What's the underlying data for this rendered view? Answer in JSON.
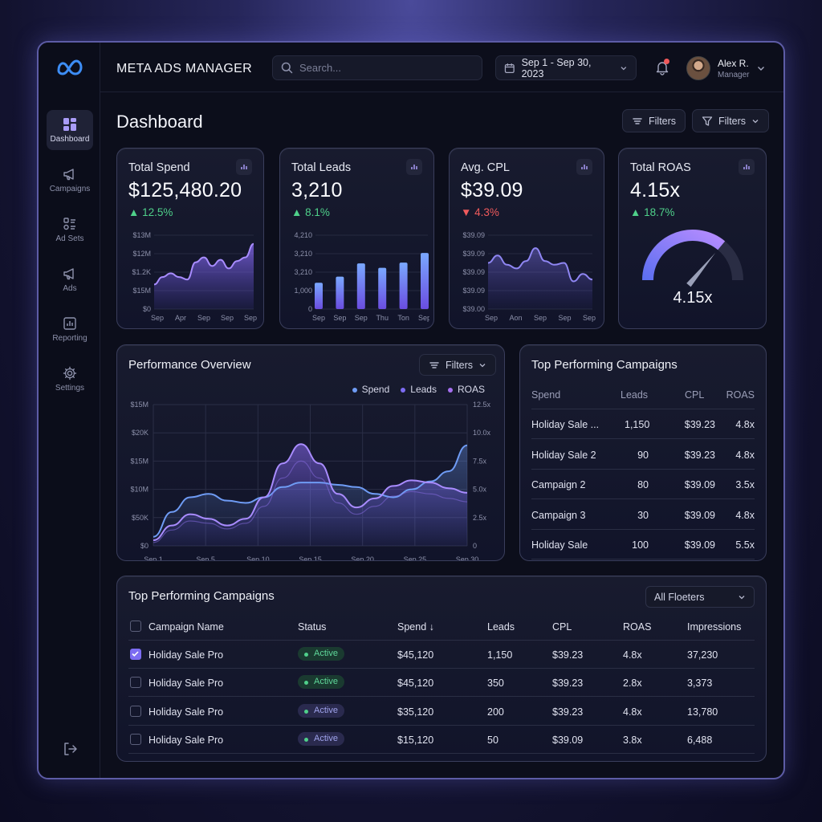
{
  "app": {
    "title": "META ADS MANAGER"
  },
  "search": {
    "placeholder": "Search..."
  },
  "date_range": "Sep 1 - Sep 30, 2023",
  "user": {
    "name": "Alex R.",
    "role": "Manager"
  },
  "sidebar": {
    "items": [
      {
        "label": "Dashboard",
        "icon": "dashboard-icon",
        "active": true
      },
      {
        "label": "Campaigns",
        "icon": "megaphone-icon"
      },
      {
        "label": "Ad Sets",
        "icon": "adsets-icon"
      },
      {
        "label": "Ads",
        "icon": "megaphone-icon"
      },
      {
        "label": "Reporting",
        "icon": "chart-icon"
      },
      {
        "label": "Settings",
        "icon": "gear-icon"
      }
    ]
  },
  "page": {
    "title": "Dashboard",
    "filter_btn_1": "Filters",
    "filter_btn_2": "Filters"
  },
  "kpis": [
    {
      "title": "Total Spend",
      "value": "$125,480.20",
      "delta": "12.5%",
      "direction": "up"
    },
    {
      "title": "Total Leads",
      "value": "3,210",
      "delta": "8.1%",
      "direction": "up"
    },
    {
      "title": "Avg. CPL",
      "value": "$39.09",
      "delta": "4.3%",
      "direction": "down"
    },
    {
      "title": "Total ROAS",
      "value": "4.15x",
      "delta": "18.7%",
      "direction": "up",
      "gauge_label": "4.15x"
    }
  ],
  "colors": {
    "accent": "#7c6cf2",
    "spend": "#6f9cf5",
    "leads": "#7c6cf2",
    "roas": "#a56ff0",
    "up": "#4fd08a",
    "down": "#f05a5c"
  },
  "chart_data": [
    {
      "type": "area",
      "title": "Total Spend",
      "y_tick_labels": [
        "$13M",
        "$12M",
        "$1.2K",
        "$15M",
        "$0"
      ],
      "x_tick_labels": [
        "Sep",
        "Apr",
        "Sep",
        "Sep",
        "Sep"
      ],
      "values": [
        2.0,
        2.6,
        2.9,
        2.6,
        2.4,
        3.8,
        4.2,
        3.5,
        4.0,
        3.3,
        3.9,
        4.2,
        5.3
      ],
      "ylim": [
        0,
        6
      ]
    },
    {
      "type": "bar",
      "title": "Total Leads",
      "categories": [
        "Sep",
        "Sep",
        "Sep",
        "Thu",
        "Ton",
        "Sep"
      ],
      "values": [
        1500,
        1850,
        2600,
        2350,
        2650,
        3200
      ],
      "y_tick_labels": [
        "4,210",
        "3,210",
        "3,210",
        "1,000",
        "0"
      ],
      "ylim": [
        0,
        4210
      ]
    },
    {
      "type": "line",
      "title": "Avg. CPL",
      "y_tick_labels": [
        "$39.09",
        "$39.09",
        "$39.09",
        "$39.09",
        "$39.00"
      ],
      "x_tick_labels": [
        "Sep",
        "Aon",
        "Sep",
        "Sep",
        "Sep"
      ],
      "values": [
        2.5,
        2.9,
        2.4,
        2.2,
        2.6,
        3.3,
        2.6,
        2.4,
        2.5,
        1.5,
        1.9,
        1.6
      ],
      "ylim": [
        0,
        4
      ]
    },
    {
      "type": "gauge",
      "title": "Total ROAS",
      "value": 4.15,
      "fill_fraction": 0.72
    },
    {
      "type": "area",
      "title": "Performance Overview",
      "x_tick_labels": [
        "Sep 1",
        "Sep 5",
        "Sep 10",
        "Sep 15",
        "Sep 20",
        "Sep 25",
        "Sep 30"
      ],
      "y_left_tick_labels": [
        "$15M",
        "$20K",
        "$15M",
        "$10M",
        "$50K",
        "$0"
      ],
      "y_right_tick_labels": [
        "12.5x",
        "10.0x",
        "7.5x",
        "5.0x",
        "2.5x",
        "0"
      ],
      "series": [
        {
          "name": "Spend",
          "values": [
            0.8,
            3.0,
            4.3,
            4.6,
            4.0,
            3.8,
            4.3,
            5.2,
            5.6,
            5.6,
            5.4,
            5.2,
            4.6,
            4.3,
            5.0,
            5.7,
            6.6,
            8.9
          ]
        },
        {
          "name": "Leads",
          "values": [
            0.5,
            1.8,
            2.8,
            2.4,
            1.8,
            2.4,
            4.3,
            7.3,
            9.0,
            7.3,
            4.6,
            3.4,
            4.2,
            5.3,
            5.8,
            5.6,
            5.1,
            4.7
          ]
        },
        {
          "name": "ROAS",
          "values": [
            0.3,
            1.4,
            2.2,
            2.0,
            1.5,
            2.0,
            3.5,
            6.0,
            7.5,
            6.0,
            3.8,
            2.8,
            3.5,
            4.4,
            4.8,
            4.6,
            4.2,
            3.9
          ]
        }
      ],
      "ylim": [
        0,
        12.5
      ]
    }
  ],
  "performance": {
    "title": "Performance Overview",
    "filter": "Filters",
    "legend": [
      "Spend",
      "Leads",
      "ROAS"
    ]
  },
  "top_campaigns": {
    "title": "Top Performing Campaigns",
    "headers": [
      "Spend",
      "Leads",
      "CPL",
      "ROAS"
    ],
    "rows": [
      [
        "Holiday Sale ...",
        "1,150",
        "$39.23",
        "4.8x"
      ],
      [
        "Holiday Sale 2",
        "90",
        "$39.23",
        "4.8x"
      ],
      [
        "Campaign 2",
        "80",
        "$39.09",
        "3.5x"
      ],
      [
        "Campaign 3",
        "30",
        "$39.09",
        "4.8x"
      ],
      [
        "Holiday Sale",
        "100",
        "$39.09",
        "5.5x"
      ]
    ]
  },
  "campaign_table": {
    "title": "Top Performing Campaigns",
    "filter": "All Floeters",
    "headers": [
      "Campaign Name",
      "Status",
      "Spend ↓",
      "Leads",
      "CPL",
      "ROAS",
      "Impressions"
    ],
    "rows": [
      {
        "checked": true,
        "name": "Holiday Sale Pro",
        "status": "Active",
        "style": "green",
        "spend": "$45,120",
        "leads": "1,150",
        "cpl": "$39.23",
        "roas": "4.8x",
        "impressions": "37,230"
      },
      {
        "checked": false,
        "name": "Holiday Sale Pro",
        "status": "Active",
        "style": "green",
        "spend": "$45,120",
        "leads": "350",
        "cpl": "$39.23",
        "roas": "2.8x",
        "impressions": "3,373"
      },
      {
        "checked": false,
        "name": "Holiday Sale Pro",
        "status": "Active",
        "style": "purple",
        "spend": "$35,120",
        "leads": "200",
        "cpl": "$39.23",
        "roas": "4.8x",
        "impressions": "13,780"
      },
      {
        "checked": false,
        "name": "Holiday Sale Pro",
        "status": "Active",
        "style": "purple",
        "spend": "$15,120",
        "leads": "50",
        "cpl": "$39.09",
        "roas": "3.8x",
        "impressions": "6,488"
      }
    ]
  }
}
